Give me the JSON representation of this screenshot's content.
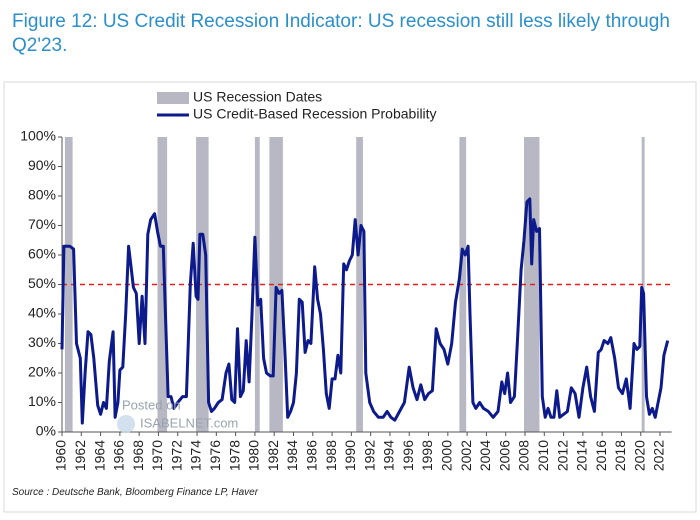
{
  "chart_data": {
    "type": "line",
    "title": "Figure 12: US Credit Recession Indicator: US recession still less likely through Q2'23.",
    "source": "Source : Deutsche Bank, Bloomberg Finance LP, Haver",
    "watermark": [
      "Posted on",
      "ISABELNET.com"
    ],
    "legend": "top",
    "xlim": [
      1960,
      2023.2
    ],
    "xticks": [
      1960,
      1962,
      1964,
      1966,
      1968,
      1970,
      1972,
      1974,
      1976,
      1978,
      1980,
      1982,
      1984,
      1986,
      1988,
      1990,
      1992,
      1994,
      1996,
      1998,
      2000,
      2002,
      2004,
      2006,
      2008,
      2010,
      2012,
      2014,
      2016,
      2018,
      2020,
      2022
    ],
    "ylim": [
      0,
      100
    ],
    "yticks": [
      {
        "value": 0,
        "label": "0%"
      },
      {
        "value": 10,
        "label": "10%"
      },
      {
        "value": 20,
        "label": "20%"
      },
      {
        "value": 30,
        "label": "30%"
      },
      {
        "value": 40,
        "label": "40%"
      },
      {
        "value": 50,
        "label": "50%"
      },
      {
        "value": 60,
        "label": "60%"
      },
      {
        "value": 70,
        "label": "70%"
      },
      {
        "value": 80,
        "label": "80%"
      },
      {
        "value": 90,
        "label": "90%"
      },
      {
        "value": 100,
        "label": "100%"
      }
    ],
    "threshold": {
      "value": 50,
      "color": "#e3201b"
    },
    "recessions": {
      "name": "US Recession Dates",
      "color": "#b8b8c4",
      "periods": [
        [
          1960.3,
          1961.1
        ],
        [
          1969.9,
          1970.9
        ],
        [
          1973.9,
          1975.2
        ],
        [
          1980.0,
          1980.5
        ],
        [
          1981.5,
          1982.9
        ],
        [
          1990.5,
          1991.2
        ],
        [
          2001.2,
          2001.9
        ],
        [
          2007.9,
          2009.5
        ],
        [
          2020.1,
          2020.4
        ]
      ]
    },
    "series": [
      {
        "name": "US Credit-Based Recession Probability",
        "color": "#0d1a8c",
        "x": [
          1960.0,
          1960.2,
          1960.8,
          1961.2,
          1961.5,
          1961.9,
          1962.1,
          1962.4,
          1962.7,
          1963.0,
          1963.3,
          1963.7,
          1964.0,
          1964.3,
          1964.6,
          1964.9,
          1965.3,
          1965.5,
          1965.8,
          1966.0,
          1966.3,
          1966.6,
          1966.9,
          1967.2,
          1967.4,
          1967.7,
          1968.0,
          1968.3,
          1968.6,
          1968.9,
          1969.2,
          1969.6,
          1969.9,
          1970.2,
          1970.5,
          1970.8,
          1971.0,
          1971.3,
          1971.6,
          1972.0,
          1972.5,
          1972.9,
          1973.3,
          1973.6,
          1973.9,
          1974.1,
          1974.3,
          1974.6,
          1974.9,
          1975.2,
          1975.5,
          1975.8,
          1976.2,
          1976.6,
          1977.0,
          1977.3,
          1977.6,
          1977.9,
          1978.2,
          1978.5,
          1978.8,
          1979.1,
          1979.4,
          1979.7,
          1980.0,
          1980.3,
          1980.6,
          1980.9,
          1981.2,
          1981.6,
          1981.9,
          1982.2,
          1982.5,
          1982.8,
          1983.1,
          1983.4,
          1983.7,
          1984.0,
          1984.3,
          1984.6,
          1984.9,
          1985.2,
          1985.5,
          1985.8,
          1986.2,
          1986.5,
          1986.8,
          1987.1,
          1987.4,
          1987.7,
          1988.0,
          1988.3,
          1988.6,
          1988.9,
          1989.2,
          1989.5,
          1989.8,
          1990.1,
          1990.4,
          1990.7,
          1991.0,
          1991.3,
          1991.5,
          1991.9,
          1992.3,
          1992.8,
          1993.3,
          1993.7,
          1994.1,
          1994.5,
          1995.0,
          1995.5,
          1996.0,
          1996.4,
          1996.8,
          1997.2,
          1997.6,
          1998.0,
          1998.4,
          1998.8,
          1999.2,
          1999.6,
          2000.0,
          2000.4,
          2000.8,
          2001.2,
          2001.5,
          2001.8,
          2002.1,
          2002.3,
          2002.6,
          2002.9,
          2003.3,
          2003.7,
          2004.2,
          2004.7,
          2005.2,
          2005.6,
          2005.9,
          2006.2,
          2006.5,
          2006.9,
          2007.2,
          2007.6,
          2007.9,
          2008.2,
          2008.5,
          2008.7,
          2008.9,
          2009.2,
          2009.5,
          2009.8,
          2010.1,
          2010.4,
          2010.7,
          2011.0,
          2011.3,
          2011.6,
          2012.0,
          2012.4,
          2012.8,
          2013.2,
          2013.6,
          2014.0,
          2014.4,
          2014.8,
          2015.2,
          2015.6,
          2015.9,
          2016.2,
          2016.6,
          2016.9,
          2017.3,
          2017.7,
          2018.1,
          2018.5,
          2018.9,
          2019.3,
          2019.6,
          2019.9,
          2020.1,
          2020.3,
          2020.6,
          2020.9,
          2021.2,
          2021.5,
          2021.8,
          2022.1,
          2022.4,
          2022.8
        ],
        "values": [
          28,
          63,
          63,
          62,
          30,
          25,
          3,
          20,
          34,
          33,
          25,
          9,
          6,
          10,
          8,
          24,
          34,
          5,
          10,
          21,
          22,
          40,
          63,
          55,
          49,
          47,
          30,
          46,
          30,
          67,
          72,
          74,
          68,
          63,
          63,
          32,
          12,
          12,
          8,
          10,
          12,
          12,
          50,
          64,
          46,
          45,
          67,
          67,
          60,
          10,
          7,
          8,
          10,
          11,
          20,
          23,
          11,
          10,
          35,
          12,
          14,
          31,
          17,
          40,
          66,
          43,
          45,
          25,
          20,
          19,
          19,
          49,
          47,
          48,
          28,
          5,
          7,
          10,
          20,
          45,
          44,
          27,
          31,
          30,
          56,
          45,
          40,
          28,
          13,
          8,
          18,
          18,
          26,
          20,
          57,
          55,
          58,
          60,
          72,
          60,
          70,
          68,
          20,
          10,
          7,
          5,
          5,
          7,
          5,
          4,
          7,
          10,
          22,
          15,
          11,
          16,
          11,
          13,
          14,
          35,
          30,
          28,
          23,
          30,
          44,
          52,
          62,
          60,
          63,
          40,
          10,
          8,
          10,
          8,
          7,
          5,
          7,
          17,
          13,
          20,
          10,
          12,
          30,
          55,
          65,
          78,
          79,
          57,
          72,
          68,
          69,
          12,
          5,
          8,
          5,
          5,
          14,
          5,
          6,
          7,
          15,
          13,
          5,
          15,
          22,
          12,
          7,
          27,
          28,
          31,
          30,
          32,
          25,
          15,
          13,
          18,
          8,
          30,
          28,
          29,
          49,
          47,
          12,
          6,
          8,
          5,
          10,
          15,
          26,
          31
        ]
      }
    ]
  }
}
